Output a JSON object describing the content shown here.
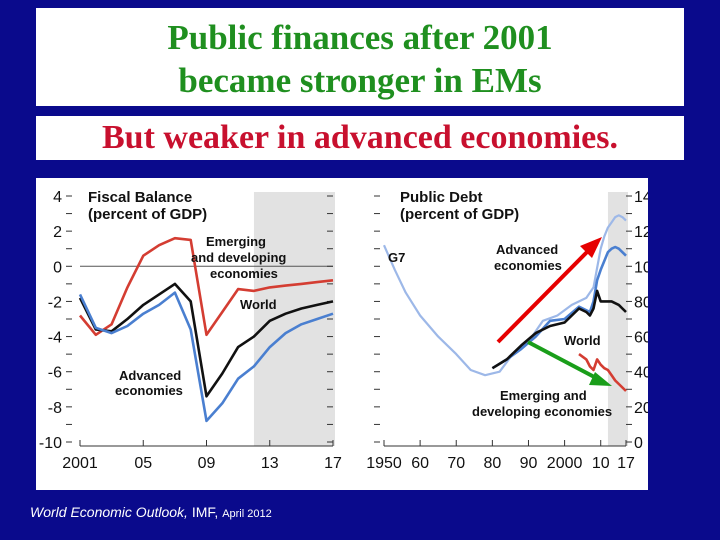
{
  "slide": {
    "title_line1": "Public finances after 2001",
    "title_line2": "became stronger in EMs",
    "subtitle": "But weaker in advanced economies.",
    "source_title": "World Economic Outlook,",
    "source_org": "IMF,",
    "source_date": "April 2012"
  },
  "colors": {
    "background": "#0a0a8c",
    "title": "#1f8f1f",
    "subtitle": "#c8102e",
    "advanced": "#4a7fd0",
    "emerging": "#d43d32",
    "world": "#111111",
    "g7": "#9db8e8",
    "projection_shade": "#e2e2e2",
    "arrow_red": "#e60000",
    "arrow_green": "#1a9e1a"
  },
  "chart_data": [
    {
      "type": "line",
      "title": "Fiscal Balance",
      "subtitle": "(percent of GDP)",
      "xlim": [
        2001,
        2017
      ],
      "ylim": [
        -10,
        4
      ],
      "xticks": [
        "2001",
        "05",
        "09",
        "13",
        "17"
      ],
      "yticks": [
        "4",
        "2",
        "0",
        "-2",
        "-4",
        "-6",
        "-8",
        "-10"
      ],
      "zero_line": true,
      "projection_start": 2012,
      "series": [
        {
          "name": "Emerging and developing economies",
          "x": [
            2001,
            2002,
            2003,
            2004,
            2005,
            2006,
            2007,
            2008,
            2009,
            2010,
            2011,
            2012,
            2013,
            2014,
            2015,
            2016,
            2017
          ],
          "y": [
            -2.8,
            -3.9,
            -3.3,
            -1.2,
            0.6,
            1.2,
            1.6,
            1.5,
            -3.9,
            -2.6,
            -1.3,
            -1.4,
            -1.2,
            -1.1,
            -1.0,
            -0.9,
            -0.8
          ]
        },
        {
          "name": "World",
          "x": [
            2001,
            2002,
            2003,
            2004,
            2005,
            2006,
            2007,
            2008,
            2009,
            2010,
            2011,
            2012,
            2013,
            2014,
            2015,
            2016,
            2017
          ],
          "y": [
            -1.8,
            -3.6,
            -3.7,
            -3.0,
            -2.2,
            -1.6,
            -1.0,
            -2.0,
            -7.4,
            -6.1,
            -4.6,
            -4.0,
            -3.1,
            -2.7,
            -2.4,
            -2.2,
            -2.0
          ]
        },
        {
          "name": "Advanced economies",
          "x": [
            2001,
            2002,
            2003,
            2004,
            2005,
            2006,
            2007,
            2008,
            2009,
            2010,
            2011,
            2012,
            2013,
            2014,
            2015,
            2016,
            2017
          ],
          "y": [
            -1.6,
            -3.5,
            -3.8,
            -3.4,
            -2.7,
            -2.2,
            -1.5,
            -3.6,
            -8.8,
            -7.8,
            -6.4,
            -5.7,
            -4.6,
            -3.8,
            -3.3,
            -3.0,
            -2.7
          ]
        }
      ],
      "labels": [
        "Emerging and developing economies",
        "World",
        "Advanced economies"
      ]
    },
    {
      "type": "line",
      "title": "Public Debt",
      "subtitle": "(percent of GDP)",
      "xlim": [
        1950,
        2017
      ],
      "ylim": [
        0,
        140
      ],
      "xticks": [
        "1950",
        "60",
        "70",
        "80",
        "90",
        "2000",
        "10",
        "17"
      ],
      "yticks": [
        "140",
        "120",
        "100",
        "80",
        "60",
        "40",
        "20",
        "0"
      ],
      "projection_start": 2012,
      "series": [
        {
          "name": "G7",
          "x": [
            1950,
            1953,
            1956,
            1960,
            1965,
            1970,
            1974,
            1978,
            1982,
            1986,
            1990,
            1994,
            1998,
            2002,
            2006,
            2008,
            2009,
            2010,
            2011,
            2012,
            2013,
            2014,
            2015,
            2016,
            2017
          ],
          "y": [
            112,
            98,
            85,
            72,
            60,
            50,
            41,
            38,
            40,
            51,
            57,
            69,
            72,
            78,
            82,
            88,
            99,
            110,
            117,
            122,
            125,
            128,
            129,
            128,
            126
          ]
        },
        {
          "name": "Advanced economies",
          "x": [
            1980,
            1984,
            1988,
            1992,
            1996,
            2000,
            2004,
            2007,
            2008,
            2009,
            2010,
            2011,
            2012,
            2013,
            2014,
            2015,
            2016,
            2017
          ],
          "y": [
            42,
            47,
            53,
            60,
            69,
            70,
            77,
            74,
            80,
            92,
            98,
            103,
            108,
            110,
            111,
            110,
            108,
            106
          ]
        },
        {
          "name": "World",
          "x": [
            1980,
            1984,
            1988,
            1992,
            1996,
            2000,
            2004,
            2006,
            2007,
            2008,
            2009,
            2010,
            2011,
            2012,
            2013,
            2014,
            2015,
            2016,
            2017
          ],
          "y": [
            42,
            47,
            55,
            62,
            66,
            68,
            76,
            74,
            72,
            76,
            86,
            80,
            80,
            80,
            80,
            79,
            78,
            76,
            74
          ]
        },
        {
          "name": "Emerging and developing economies",
          "x": [
            2004,
            2006,
            2007,
            2008,
            2009,
            2010,
            2011,
            2012,
            2013,
            2014,
            2015,
            2016,
            2017
          ],
          "y": [
            50,
            47,
            43,
            41,
            47,
            44,
            42,
            41,
            38,
            35,
            33,
            31,
            29
          ]
        }
      ],
      "labels": [
        "G7",
        "Advanced economies",
        "World",
        "Emerging and developing economies"
      ]
    }
  ]
}
